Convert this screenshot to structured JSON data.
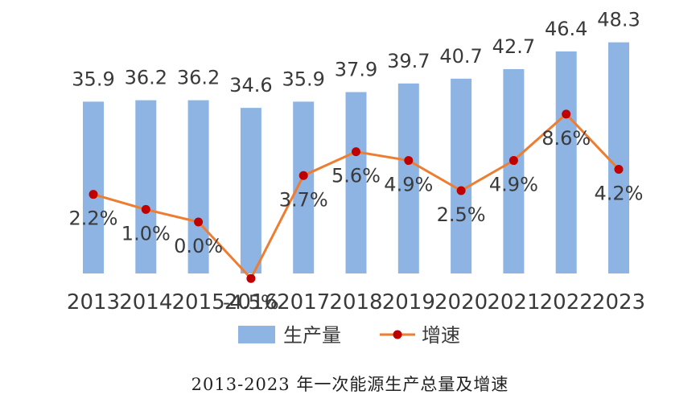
{
  "chart_data": {
    "type": "bar",
    "categories": [
      "2013",
      "2014",
      "2015",
      "2016",
      "2017",
      "2018",
      "2019",
      "2020",
      "2021",
      "2022",
      "2023"
    ],
    "series": [
      {
        "name": "生产量",
        "type": "bar",
        "color": "#8EB4E3",
        "values": [
          35.9,
          36.2,
          36.2,
          34.6,
          35.9,
          37.9,
          39.7,
          40.7,
          42.7,
          46.4,
          48.3
        ],
        "labels": [
          "35.9",
          "36.2",
          "36.2",
          "34.6",
          "35.9",
          "37.9",
          "39.7",
          "40.7",
          "42.7",
          "46.4",
          "48.3"
        ]
      },
      {
        "name": "增速",
        "type": "line",
        "color": "#ED7D31",
        "marker_color": "#C00000",
        "values": [
          2.2,
          1.0,
          0.0,
          -4.5,
          3.7,
          5.6,
          4.9,
          2.5,
          4.9,
          8.6,
          4.2
        ],
        "labels": [
          "2.2%",
          "1.0%",
          "0.0%",
          "-4.5%",
          "3.7%",
          "5.6%",
          "4.9%",
          "2.5%",
          "4.9%",
          "8.6%",
          "4.2%"
        ]
      }
    ],
    "legend_position": "bottom",
    "grid": false,
    "title": "2013-2023 年一次能源生产总量及增速"
  }
}
